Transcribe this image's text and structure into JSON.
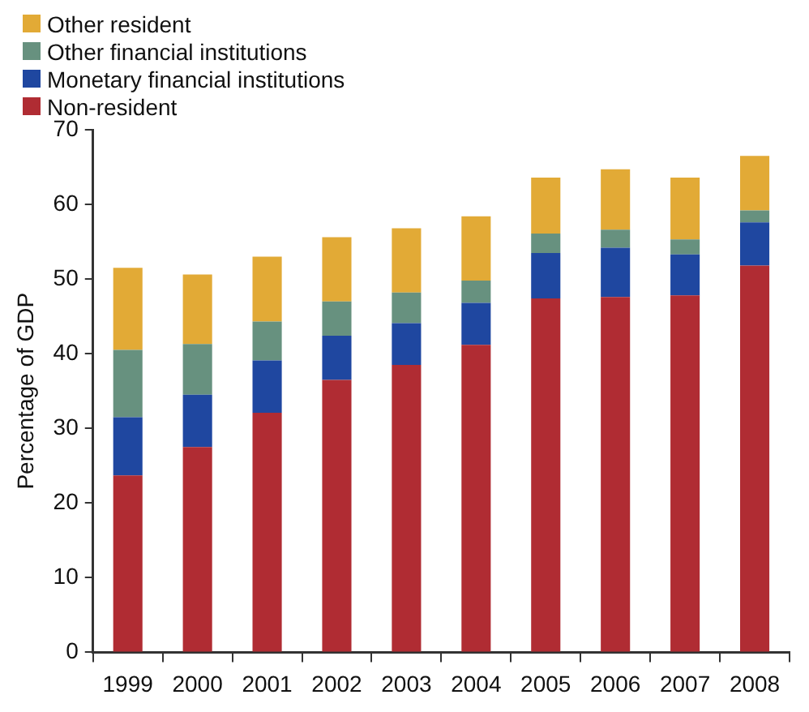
{
  "chart_data": {
    "type": "bar",
    "stacked": true,
    "ylabel": "Percentage of GDP",
    "categories": [
      "1999",
      "2000",
      "2001",
      "2002",
      "2003",
      "2004",
      "2005",
      "2006",
      "2007",
      "2008"
    ],
    "series": [
      {
        "name": "Non-resident",
        "color": "#b02c33",
        "values": [
          23.7,
          27.5,
          32.1,
          36.5,
          38.5,
          41.2,
          47.4,
          47.6,
          47.8,
          51.8
        ]
      },
      {
        "name": "Monetary financial institutions",
        "color": "#1f47a0",
        "values": [
          7.8,
          7.0,
          7.0,
          5.9,
          5.6,
          5.6,
          6.1,
          6.6,
          5.5,
          5.8
        ]
      },
      {
        "name": "Other financial institutions",
        "color": "#67917f",
        "values": [
          9.0,
          6.8,
          5.2,
          4.6,
          4.1,
          3.0,
          2.6,
          2.4,
          2.0,
          1.6
        ]
      },
      {
        "name": "Other resident",
        "color": "#e2aa36",
        "values": [
          11.0,
          9.3,
          8.7,
          8.6,
          8.6,
          8.6,
          7.5,
          8.1,
          8.3,
          7.3
        ]
      }
    ],
    "ylim": [
      0,
      70
    ],
    "yticks": [
      0,
      10,
      20,
      30,
      40,
      50,
      60,
      70
    ],
    "grid": false,
    "legend": "top left"
  }
}
